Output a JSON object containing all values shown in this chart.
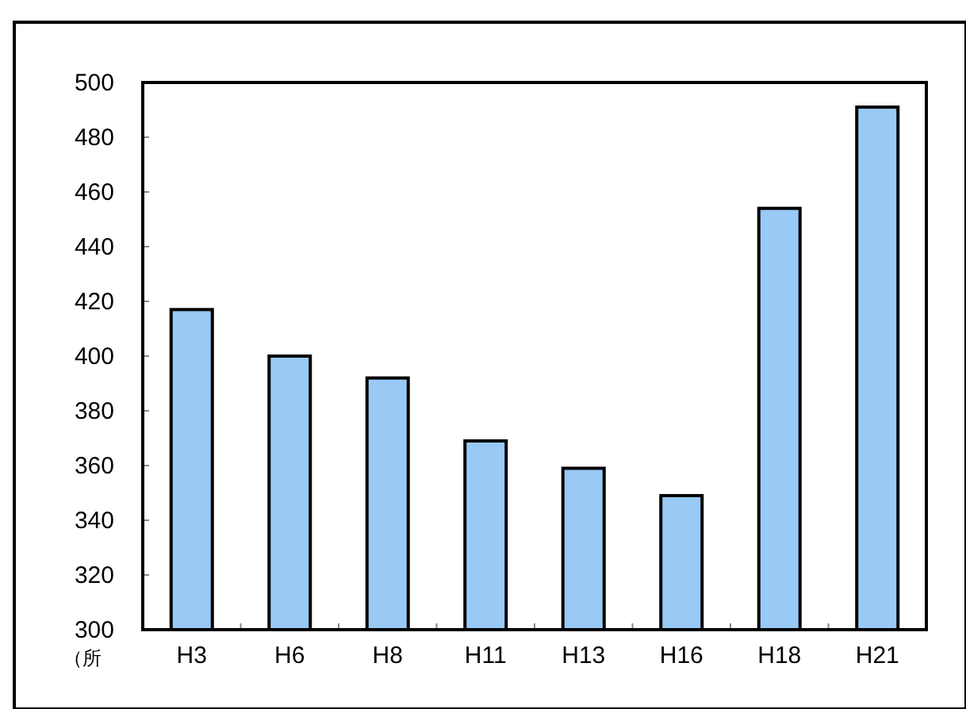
{
  "chart_data": {
    "type": "bar",
    "ylabel": "（所",
    "categories": [
      "H3",
      "H6",
      "H8",
      "H11",
      "H13",
      "H16",
      "H18",
      "H21"
    ],
    "values": [
      417,
      400,
      392,
      369,
      359,
      349,
      454,
      491
    ],
    "color": "#99c9f5",
    "ylim": [
      300,
      500
    ],
    "yticks": [
      300,
      320,
      340,
      360,
      380,
      400,
      420,
      440,
      460,
      480,
      500
    ]
  }
}
